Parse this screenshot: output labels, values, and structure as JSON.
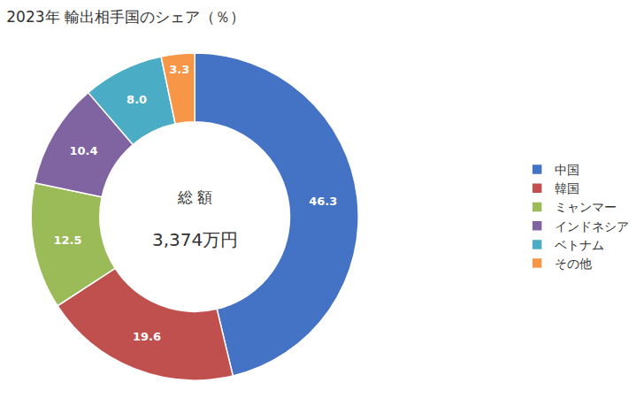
{
  "chart_data": {
    "type": "donut",
    "title": "2023年 輸出相手国のシェア（％）",
    "annotations": [
      "総 額",
      "3,374万円"
    ],
    "categories": [
      "中国",
      "韓国",
      "ミャンマー",
      "インドネシア",
      "ベトナム",
      "その他"
    ],
    "values": [
      46.3,
      19.6,
      12.5,
      10.4,
      8.0,
      3.3
    ],
    "value_labels": [
      "46.3",
      "19.6",
      "12.5",
      "10.4",
      "8.0",
      "3.3"
    ],
    "colors": [
      "#4472C4",
      "#C0504D",
      "#9BBB59",
      "#8064A2",
      "#4BACC6",
      "#F79646"
    ],
    "data_labels": true,
    "legend": "right"
  }
}
